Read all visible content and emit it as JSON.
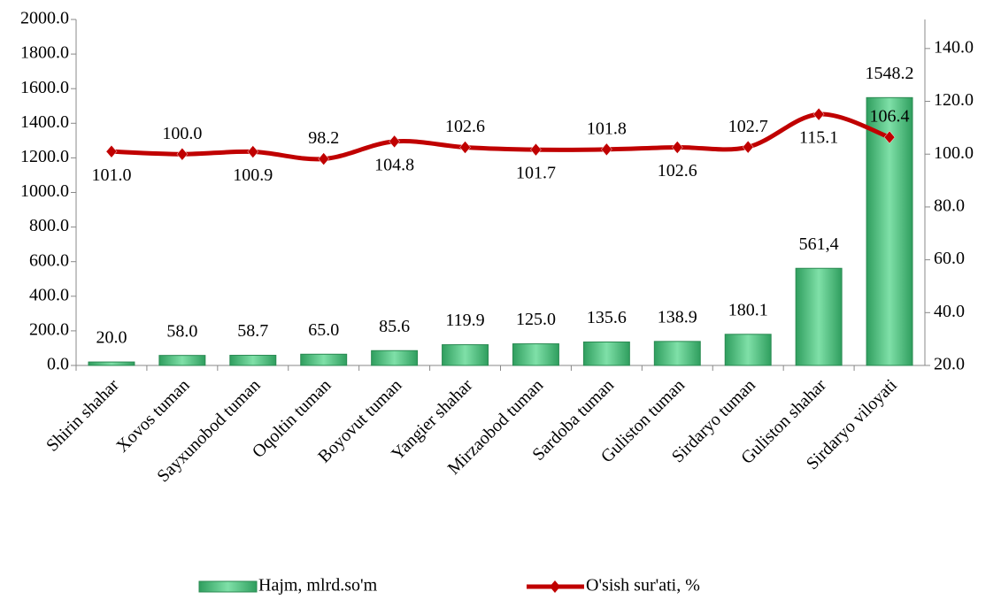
{
  "chart_data": {
    "type": "bar",
    "categories": [
      "Shirin shahar",
      "Xovos tuman",
      "Sayxunobod tuman",
      "Oqoltin tuman",
      "Boyovut tuman",
      "Yangier shahar",
      "Mirzaobod tuman",
      "Sardoba tuman",
      "Guliston tuman",
      "Sirdaryo tuman",
      "Guliston shahar",
      "Sirdaryo viloyati"
    ],
    "series": [
      {
        "name": "Hajm, mlrd.so'm",
        "type": "bar",
        "color": "#4cc27f",
        "values": [
          20,
          58,
          58.7,
          65,
          85.6,
          119.9,
          125,
          135.6,
          138.9,
          180.1,
          561.4,
          1548.2
        ],
        "value_labels": [
          "20.0",
          "58.0",
          "58.7",
          "65.0",
          "85.6",
          "119.9",
          "125.0",
          "135.6",
          "138.9",
          "180.1",
          "561,4",
          "1548.2"
        ]
      },
      {
        "name": "O'sish sur'ati, %",
        "type": "line",
        "axis": "y2",
        "color": "#c00000",
        "values": [
          101,
          100,
          100.9,
          98.2,
          104.8,
          102.6,
          101.7,
          101.8,
          102.6,
          102.7,
          115.1,
          106.4
        ],
        "value_labels": [
          "101.0",
          "100.0",
          "100.9",
          "98.2",
          "104.8",
          "102.6",
          "101.7",
          "101.8",
          "102.6",
          "102.7",
          "115.1",
          "106.4"
        ]
      }
    ],
    "ylim": [
      0,
      2000
    ],
    "yticks": [
      {
        "value": 0,
        "label": "0.0"
      },
      {
        "value": 200,
        "label": "200.0"
      },
      {
        "value": 400,
        "label": "400.0"
      },
      {
        "value": 600,
        "label": "600.0"
      },
      {
        "value": 800,
        "label": "800.0"
      },
      {
        "value": 1000,
        "label": "1000.0"
      },
      {
        "value": 1200,
        "label": "1200.0"
      },
      {
        "value": 1400,
        "label": "1400.0"
      },
      {
        "value": 1600,
        "label": "1600.0"
      },
      {
        "value": 1800,
        "label": "1800.0"
      },
      {
        "value": 2000,
        "label": "2000.0"
      }
    ],
    "y2lim": [
      20,
      151
    ],
    "y2ticks": [
      {
        "value": 20,
        "label": "20.0"
      },
      {
        "value": 40,
        "label": "40.0"
      },
      {
        "value": 60,
        "label": "60.0"
      },
      {
        "value": 80,
        "label": "80.0"
      },
      {
        "value": 100,
        "label": "100.0"
      },
      {
        "value": 120,
        "label": "120.0"
      },
      {
        "value": 140,
        "label": "140.0"
      }
    ],
    "legend": "bottom"
  }
}
